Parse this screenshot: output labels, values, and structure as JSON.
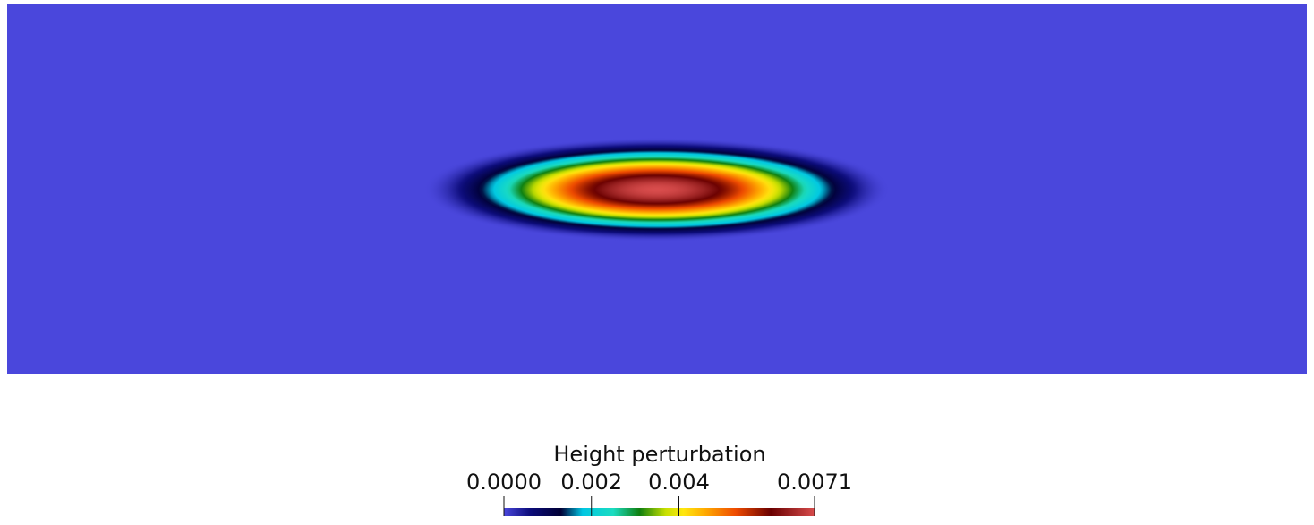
{
  "chart_data": {
    "type": "heatmap",
    "title": "",
    "field_name": "Height perturbation",
    "range": [
      0.0,
      0.0071
    ],
    "colormap": "rainbow-uniform",
    "colormap_stops": [
      {
        "v": 0.0,
        "color": "#4a47dc"
      },
      {
        "v": 0.0006,
        "color": "#0c0c7a"
      },
      {
        "v": 0.0013,
        "color": "#000035"
      },
      {
        "v": 0.0018,
        "color": "#00c7e3"
      },
      {
        "v": 0.0025,
        "color": "#1bdcc0"
      },
      {
        "v": 0.0031,
        "color": "#0f7f0f"
      },
      {
        "v": 0.0037,
        "color": "#c8e000"
      },
      {
        "v": 0.0041,
        "color": "#ffe70f"
      },
      {
        "v": 0.0046,
        "color": "#ffaa00"
      },
      {
        "v": 0.0053,
        "color": "#ee4a00"
      },
      {
        "v": 0.0061,
        "color": "#6a0000"
      },
      {
        "v": 0.0071,
        "color": "#d84c4c"
      }
    ],
    "background_value": 0.0,
    "peak_value": 0.0071,
    "colorbar": {
      "title": "Height perturbation",
      "tick_labels": [
        {
          "value": 0.0,
          "label": "0.0000"
        },
        {
          "value": 0.002,
          "label": "0.002"
        },
        {
          "value": 0.004,
          "label": "0.004"
        },
        {
          "value": 0.0071,
          "label": "0.0071"
        }
      ]
    }
  }
}
